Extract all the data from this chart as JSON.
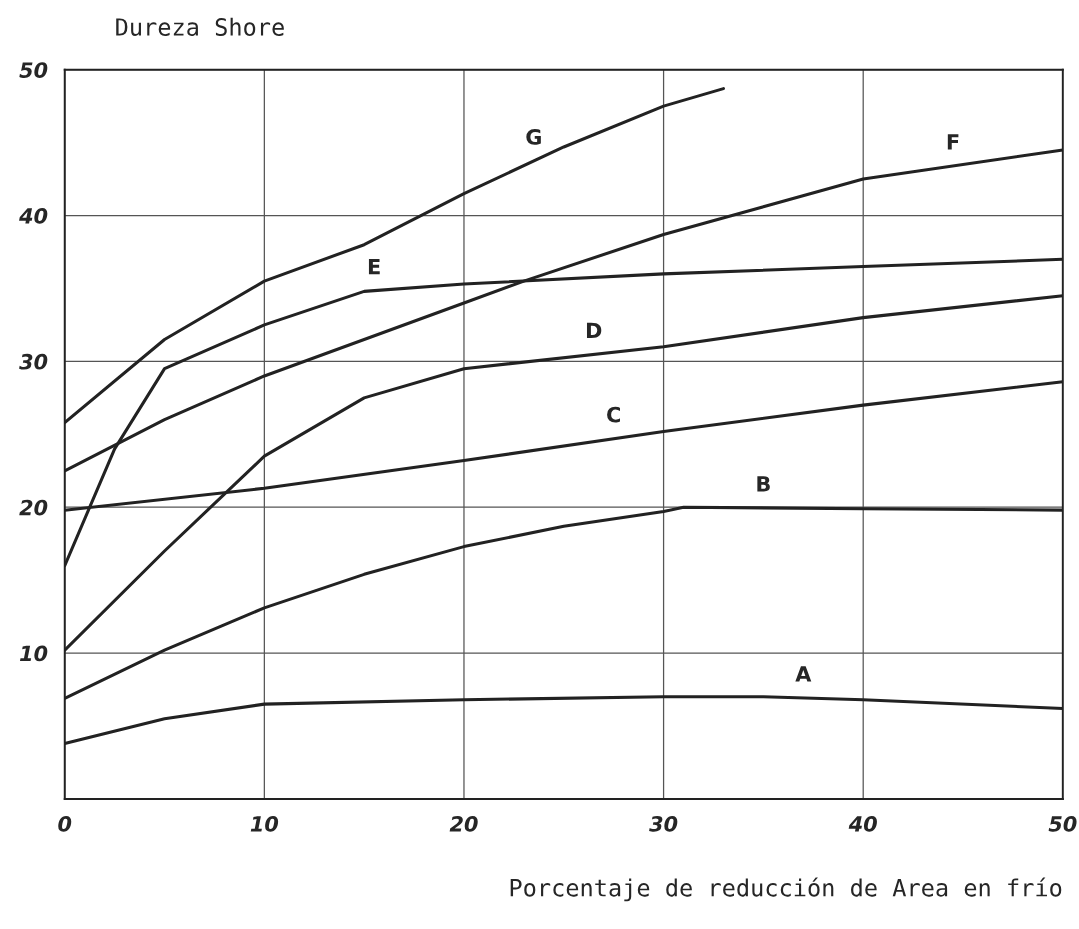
{
  "chart_data": {
    "type": "line",
    "xlabel": "Porcentaje de reducción de Area en frío",
    "ylabel": "Dureza Shore",
    "xlim": [
      0,
      50
    ],
    "ylim": [
      0,
      50
    ],
    "xticks": [
      0,
      10,
      20,
      30,
      40,
      50
    ],
    "yticks": [
      10,
      20,
      30,
      40,
      50
    ],
    "grid": true,
    "legend": false,
    "marker": "none",
    "line_style": "solid",
    "series": [
      {
        "name": "A",
        "color": "#222222",
        "x": [
          0,
          5,
          10,
          20,
          30,
          35,
          40,
          50
        ],
        "values": [
          3.8,
          5.5,
          6.5,
          6.8,
          7.0,
          7.0,
          6.8,
          6.2
        ]
      },
      {
        "name": "B",
        "color": "#222222",
        "x": [
          0,
          5,
          10,
          15,
          20,
          25,
          30,
          31,
          40,
          50
        ],
        "values": [
          6.9,
          10.2,
          13.1,
          15.4,
          17.3,
          18.7,
          19.7,
          20.0,
          19.9,
          19.8
        ]
      },
      {
        "name": "C",
        "color": "#222222",
        "x": [
          0,
          10,
          20,
          30,
          40,
          50
        ],
        "values": [
          19.8,
          21.3,
          23.2,
          25.2,
          27.0,
          28.6
        ]
      },
      {
        "name": "D",
        "color": "#222222",
        "x": [
          0,
          5,
          10,
          15,
          20,
          30,
          40,
          50
        ],
        "values": [
          10.2,
          17.0,
          23.5,
          27.5,
          29.5,
          31.0,
          33.0,
          34.5
        ]
      },
      {
        "name": "E",
        "color": "#222222",
        "x": [
          0,
          2.5,
          5,
          10,
          15,
          20,
          30,
          40,
          50
        ],
        "values": [
          16.0,
          24.0,
          29.5,
          32.5,
          34.8,
          35.3,
          36.0,
          36.5,
          37.0
        ]
      },
      {
        "name": "F",
        "color": "#222222",
        "x": [
          0,
          5,
          10,
          20,
          23,
          30,
          40,
          50
        ],
        "values": [
          22.5,
          26.0,
          29.0,
          34.0,
          35.5,
          38.7,
          42.5,
          44.5
        ]
      },
      {
        "name": "G",
        "color": "#222222",
        "x": [
          0,
          5,
          10,
          15,
          20,
          25,
          30,
          33
        ],
        "values": [
          25.8,
          31.5,
          35.5,
          38.0,
          41.5,
          44.7,
          47.5,
          48.7
        ]
      }
    ]
  }
}
